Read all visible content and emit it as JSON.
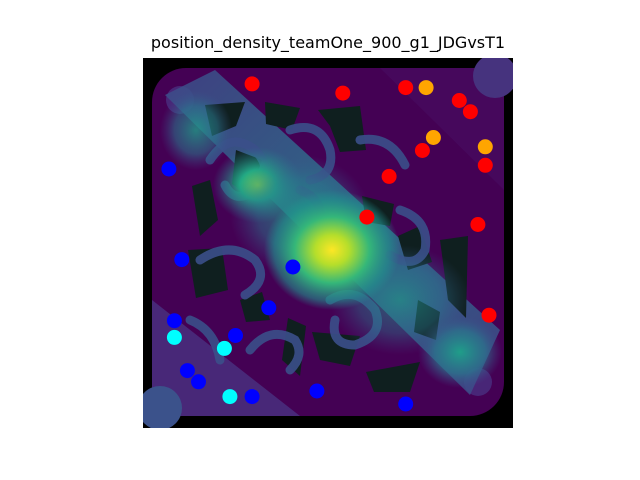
{
  "chart_data": {
    "type": "scatter",
    "title": "position_density_teamOne_900_g1_JDGvsT1",
    "xlabel": "",
    "ylabel": "",
    "axes_visible": false,
    "background": "density heatmap over game map (viridis colormap)",
    "xlim": [
      0,
      100
    ],
    "ylim": [
      0,
      100
    ],
    "colors": {
      "red": "#ff0000",
      "orange": "#ffa500",
      "blue": "#0000ff",
      "cyan": "#00ffff"
    },
    "series": [
      {
        "color": "red",
        "points": [
          {
            "x": 29.5,
            "y": 93.0
          },
          {
            "x": 54.0,
            "y": 90.5
          },
          {
            "x": 71.0,
            "y": 92.0
          },
          {
            "x": 85.5,
            "y": 88.5
          },
          {
            "x": 88.5,
            "y": 85.5
          },
          {
            "x": 75.5,
            "y": 75.0
          },
          {
            "x": 92.5,
            "y": 71.0
          },
          {
            "x": 66.5,
            "y": 68.0
          },
          {
            "x": 60.5,
            "y": 57.0
          },
          {
            "x": 90.5,
            "y": 55.0
          },
          {
            "x": 93.5,
            "y": 30.5
          }
        ]
      },
      {
        "color": "orange",
        "points": [
          {
            "x": 76.5,
            "y": 92.0
          },
          {
            "x": 78.5,
            "y": 78.5
          },
          {
            "x": 92.5,
            "y": 76.0
          }
        ]
      },
      {
        "color": "blue",
        "points": [
          {
            "x": 7.0,
            "y": 70.0
          },
          {
            "x": 10.5,
            "y": 45.5
          },
          {
            "x": 40.5,
            "y": 43.5
          },
          {
            "x": 34.0,
            "y": 32.5
          },
          {
            "x": 8.5,
            "y": 29.0
          },
          {
            "x": 25.0,
            "y": 25.0
          },
          {
            "x": 12.0,
            "y": 15.5
          },
          {
            "x": 15.0,
            "y": 12.5
          },
          {
            "x": 29.5,
            "y": 8.5
          },
          {
            "x": 47.0,
            "y": 10.0
          },
          {
            "x": 71.0,
            "y": 6.5
          }
        ]
      },
      {
        "color": "cyan",
        "points": [
          {
            "x": 8.5,
            "y": 24.5
          },
          {
            "x": 22.0,
            "y": 21.5
          },
          {
            "x": 23.5,
            "y": 8.5
          }
        ]
      }
    ]
  }
}
